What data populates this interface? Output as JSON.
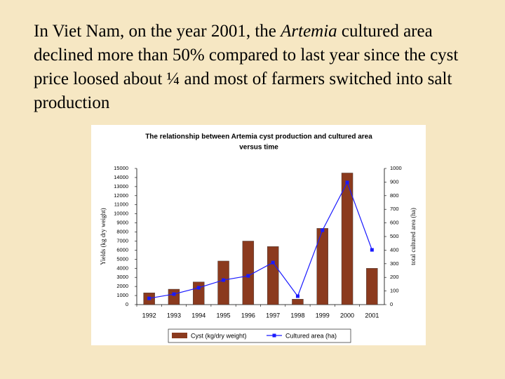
{
  "slide_text": [
    "In Viet Nam, on the year 2001, the ",
    "Artemia",
    " cultured area declined more than 50% compared to last year since the cyst price loosed about ¼ and most of farmers switched into salt production"
  ],
  "chart_data": {
    "type": "bar_line",
    "title": [
      "The relationship between Artemia cyst production and cultured area",
      "versus time"
    ],
    "y_label": "Yields (kg dry weight)",
    "y2_label": "total cultured area (ha)",
    "categories": [
      "1992",
      "1993",
      "1994",
      "1995",
      "1996",
      "1997",
      "1998",
      "1999",
      "2000",
      "2001"
    ],
    "series": [
      {
        "name": "Cyst (kg/dry weight)",
        "color": "#8b3a1e",
        "kind": "bar",
        "values": [
          1300,
          1700,
          2500,
          4800,
          7000,
          6400,
          600,
          8400,
          14500,
          4000
        ]
      },
      {
        "name": "Cultured area (ha)",
        "color": "#1a1aff",
        "kind": "line",
        "axis": "y2",
        "values": [
          46,
          77,
          124,
          180,
          211,
          309,
          62,
          546,
          897,
          402
        ]
      }
    ],
    "ylim": [
      0,
      15000
    ],
    "yticks": [
      0,
      1000,
      2000,
      3000,
      4000,
      5000,
      6000,
      7000,
      8000,
      9000,
      10000,
      11000,
      12000,
      13000,
      14000,
      15000
    ],
    "y2lim": [
      0,
      1000
    ],
    "y2ticks": [
      0,
      100,
      200,
      300,
      400,
      500,
      600,
      700,
      800,
      900,
      1000
    ],
    "legend": "bottom"
  }
}
